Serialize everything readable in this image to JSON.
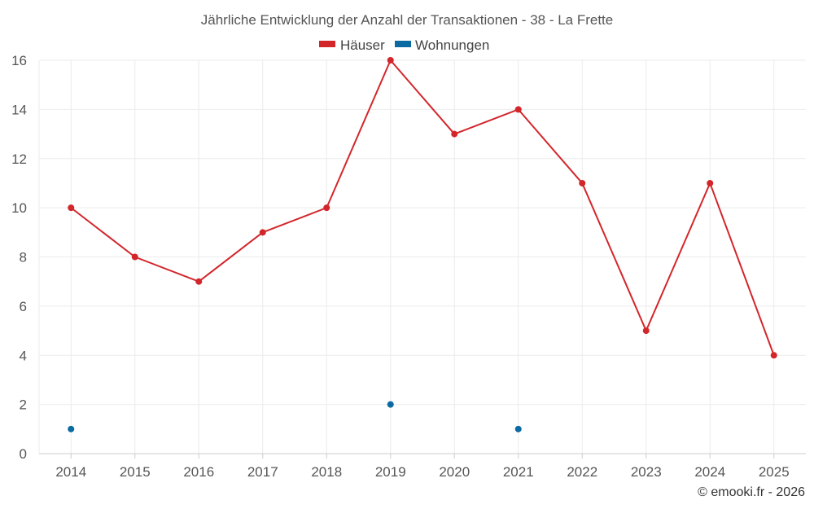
{
  "chart_data": {
    "type": "line",
    "title": "Jährliche Entwicklung der Anzahl der Transaktionen - 38 - La Frette",
    "categories": [
      "2014",
      "2015",
      "2016",
      "2017",
      "2018",
      "2019",
      "2020",
      "2021",
      "2022",
      "2023",
      "2024",
      "2025"
    ],
    "xlabel": "",
    "ylabel": "",
    "ylim": [
      0,
      16
    ],
    "yticks": [
      0,
      2,
      4,
      6,
      8,
      10,
      12,
      14,
      16
    ],
    "grid": true,
    "legend_position": "top-center",
    "series": [
      {
        "name": "Häuser",
        "color": "#d3262b",
        "values": [
          10,
          8,
          7,
          9,
          10,
          16,
          13,
          14,
          11,
          5,
          11,
          4
        ],
        "line": true
      },
      {
        "name": "Wohnungen",
        "color": "#0a6aa1",
        "values": [
          1,
          null,
          null,
          null,
          null,
          2,
          null,
          1,
          null,
          null,
          null,
          null
        ],
        "line": false
      }
    ]
  },
  "credit": "© emooki.fr - 2026"
}
